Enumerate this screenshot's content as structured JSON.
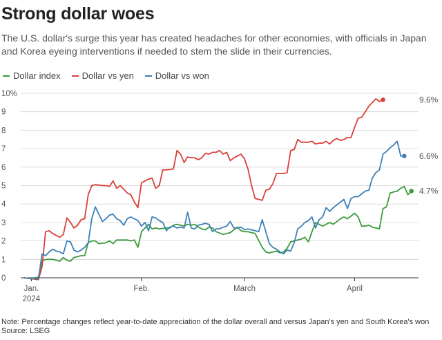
{
  "title": "Strong dollar woes",
  "subtitle": "The U.S. dollar's surge this year has created headaches for other economies, with officials in Japan and Korea eyeing interventions if needed to stem the slide in their currencies.",
  "note": "Note: Percentage changes reflect year-to-date appreciation of the dollar overall and versus Japan's yen and South Korea's won",
  "source": "Source: LSEG",
  "chart_data": {
    "type": "line",
    "title": "Strong dollar woes",
    "xlabel": "",
    "ylabel": "",
    "ylim": [
      0,
      10
    ],
    "yticks": [
      0,
      1,
      2,
      3,
      4,
      5,
      6,
      7,
      8,
      9,
      10
    ],
    "ytick_labels": [
      "0",
      "1",
      "2",
      "3",
      "4",
      "5",
      "6",
      "7",
      "8",
      "9",
      "10%"
    ],
    "xlim": [
      -1,
      111
    ],
    "xticks": [
      {
        "x": 2,
        "label": "Jan.",
        "sublabel": "2024"
      },
      {
        "x": 33,
        "label": "Feb."
      },
      {
        "x": 62,
        "label": "March"
      },
      {
        "x": 93,
        "label": "April"
      }
    ],
    "series": [
      {
        "name": "Dollar index",
        "color": "#3a9a3a",
        "end_label": "4.7%",
        "points": [
          [
            0,
            0
          ],
          [
            2,
            -0.05
          ],
          [
            4,
            0.05
          ],
          [
            5,
            0.9
          ],
          [
            6,
            1.0
          ],
          [
            8,
            1.0
          ],
          [
            9,
            0.95
          ],
          [
            10,
            0.9
          ],
          [
            11,
            1.1
          ],
          [
            12,
            0.95
          ],
          [
            13,
            0.9
          ],
          [
            14,
            1.1
          ],
          [
            16,
            1.2
          ],
          [
            17,
            1.2
          ],
          [
            18,
            1.9
          ],
          [
            19,
            2.0
          ],
          [
            20,
            2.0
          ],
          [
            21,
            1.85
          ],
          [
            23,
            1.9
          ],
          [
            24,
            2.0
          ],
          [
            25,
            1.85
          ],
          [
            26,
            2.05
          ],
          [
            27,
            2.05
          ],
          [
            29,
            2.05
          ],
          [
            30,
            2.0
          ],
          [
            31,
            2.05
          ],
          [
            32,
            1.65
          ],
          [
            33,
            2.5
          ],
          [
            34,
            2.7
          ],
          [
            35,
            2.9
          ],
          [
            36,
            2.65
          ],
          [
            37,
            2.7
          ],
          [
            38,
            2.65
          ],
          [
            40,
            2.7
          ],
          [
            41,
            2.7
          ],
          [
            42,
            2.85
          ],
          [
            43,
            2.9
          ],
          [
            44,
            2.85
          ],
          [
            45,
            2.8
          ],
          [
            46,
            2.9
          ],
          [
            47,
            2.85
          ],
          [
            48,
            2.9
          ],
          [
            49,
            2.75
          ],
          [
            50,
            2.65
          ],
          [
            51,
            2.6
          ],
          [
            52,
            2.75
          ],
          [
            53,
            2.7
          ],
          [
            54,
            2.5
          ],
          [
            56,
            2.35
          ],
          [
            57,
            2.4
          ],
          [
            58,
            2.45
          ],
          [
            59,
            2.6
          ],
          [
            60,
            2.75
          ],
          [
            61,
            2.55
          ],
          [
            62,
            2.5
          ],
          [
            63,
            2.5
          ],
          [
            64,
            2.45
          ],
          [
            65,
            2.4
          ],
          [
            67,
            1.65
          ],
          [
            68,
            1.4
          ],
          [
            69,
            1.35
          ],
          [
            70,
            1.4
          ],
          [
            71,
            1.45
          ],
          [
            72,
            1.35
          ],
          [
            73,
            1.4
          ],
          [
            74,
            1.6
          ],
          [
            75,
            1.95
          ],
          [
            76,
            2.0
          ],
          [
            77,
            2.05
          ],
          [
            78,
            2.1
          ],
          [
            79,
            2.2
          ],
          [
            80,
            1.95
          ],
          [
            81,
            2.5
          ],
          [
            82,
            3.0
          ],
          [
            83,
            2.9
          ],
          [
            84,
            2.8
          ],
          [
            85,
            2.9
          ],
          [
            86,
            3.0
          ],
          [
            87,
            2.9
          ],
          [
            88,
            3.05
          ],
          [
            89,
            3.2
          ],
          [
            90,
            3.3
          ],
          [
            91,
            3.2
          ],
          [
            92,
            3.35
          ],
          [
            93,
            3.5
          ],
          [
            94,
            3.3
          ],
          [
            95,
            2.8
          ],
          [
            96,
            2.8
          ],
          [
            97,
            2.85
          ],
          [
            98,
            2.75
          ],
          [
            99,
            2.7
          ],
          [
            100,
            2.65
          ],
          [
            101,
            3.75
          ],
          [
            102,
            3.85
          ],
          [
            103,
            4.6
          ],
          [
            104,
            4.65
          ],
          [
            105,
            4.7
          ],
          [
            106,
            4.85
          ],
          [
            107,
            4.95
          ],
          [
            108,
            4.5
          ],
          [
            109,
            4.7
          ]
        ]
      },
      {
        "name": "Dollar vs yen",
        "color": "#d9403a",
        "end_label": "9.6%",
        "points": [
          [
            0,
            0
          ],
          [
            2,
            -0.05
          ],
          [
            4,
            -0.1
          ],
          [
            5,
            0.6
          ],
          [
            6,
            2.5
          ],
          [
            7,
            2.55
          ],
          [
            8,
            2.4
          ],
          [
            9,
            2.3
          ],
          [
            10,
            2.2
          ],
          [
            11,
            2.35
          ],
          [
            12,
            3.25
          ],
          [
            13,
            3.0
          ],
          [
            14,
            2.7
          ],
          [
            15,
            2.85
          ],
          [
            16,
            3.15
          ],
          [
            17,
            3.2
          ],
          [
            18,
            4.5
          ],
          [
            19,
            5.0
          ],
          [
            20,
            5.05
          ],
          [
            22,
            5.0
          ],
          [
            23,
            5.0
          ],
          [
            24,
            4.95
          ],
          [
            25,
            5.25
          ],
          [
            26,
            4.85
          ],
          [
            27,
            5.0
          ],
          [
            28,
            4.8
          ],
          [
            29,
            4.6
          ],
          [
            30,
            4.5
          ],
          [
            31,
            4.1
          ],
          [
            32,
            3.8
          ],
          [
            33,
            5.15
          ],
          [
            34,
            5.25
          ],
          [
            35,
            5.35
          ],
          [
            36,
            5.4
          ],
          [
            37,
            4.85
          ],
          [
            38,
            5.0
          ],
          [
            39,
            5.85
          ],
          [
            40,
            5.85
          ],
          [
            42,
            5.9
          ],
          [
            43,
            6.9
          ],
          [
            44,
            6.7
          ],
          [
            45,
            6.25
          ],
          [
            46,
            6.55
          ],
          [
            47,
            6.5
          ],
          [
            48,
            6.5
          ],
          [
            49,
            6.4
          ],
          [
            50,
            6.5
          ],
          [
            51,
            6.75
          ],
          [
            52,
            6.7
          ],
          [
            53,
            6.8
          ],
          [
            54,
            6.8
          ],
          [
            55,
            6.9
          ],
          [
            56,
            6.7
          ],
          [
            57,
            6.8
          ],
          [
            58,
            6.35
          ],
          [
            59,
            6.5
          ],
          [
            60,
            6.6
          ],
          [
            61,
            6.7
          ],
          [
            62,
            6.45
          ],
          [
            63,
            5.9
          ],
          [
            64,
            5.0
          ],
          [
            65,
            4.3
          ],
          [
            66,
            4.25
          ],
          [
            67,
            4.2
          ],
          [
            68,
            4.75
          ],
          [
            69,
            4.8
          ],
          [
            70,
            5.1
          ],
          [
            71,
            5.65
          ],
          [
            72,
            5.65
          ],
          [
            73,
            5.65
          ],
          [
            74,
            5.7
          ],
          [
            75,
            6.9
          ],
          [
            76,
            6.95
          ],
          [
            77,
            7.5
          ],
          [
            78,
            7.35
          ],
          [
            79,
            7.35
          ],
          [
            80,
            7.35
          ],
          [
            81,
            7.4
          ],
          [
            82,
            7.25
          ],
          [
            83,
            7.3
          ],
          [
            84,
            7.3
          ],
          [
            85,
            7.4
          ],
          [
            86,
            7.25
          ],
          [
            87,
            7.45
          ],
          [
            88,
            7.55
          ],
          [
            89,
            7.45
          ],
          [
            90,
            7.5
          ],
          [
            91,
            7.6
          ],
          [
            92,
            7.6
          ],
          [
            93,
            8.15
          ],
          [
            94,
            8.65
          ],
          [
            95,
            8.7
          ],
          [
            96,
            9.0
          ],
          [
            97,
            9.3
          ],
          [
            98,
            9.5
          ],
          [
            99,
            9.7
          ],
          [
            100,
            9.55
          ],
          [
            101,
            9.65
          ]
        ]
      },
      {
        "name": "Dollar vs won",
        "color": "#3d80b8",
        "end_label": "6.6%",
        "points": [
          [
            0,
            0
          ],
          [
            2,
            -0.05
          ],
          [
            4,
            -0.05
          ],
          [
            5,
            1.3
          ],
          [
            6,
            1.2
          ],
          [
            7,
            1.4
          ],
          [
            8,
            1.55
          ],
          [
            9,
            1.45
          ],
          [
            10,
            1.4
          ],
          [
            11,
            1.3
          ],
          [
            12,
            2.0
          ],
          [
            13,
            1.95
          ],
          [
            14,
            1.5
          ],
          [
            15,
            1.4
          ],
          [
            16,
            1.5
          ],
          [
            17,
            1.65
          ],
          [
            18,
            1.9
          ],
          [
            19,
            3.2
          ],
          [
            20,
            3.85
          ],
          [
            21,
            3.45
          ],
          [
            22,
            3.05
          ],
          [
            23,
            3.2
          ],
          [
            24,
            3.4
          ],
          [
            25,
            3.45
          ],
          [
            26,
            3.2
          ],
          [
            27,
            3.1
          ],
          [
            28,
            2.85
          ],
          [
            29,
            3.2
          ],
          [
            30,
            3.3
          ],
          [
            31,
            3.2
          ],
          [
            32,
            3.1
          ],
          [
            33,
            2.8
          ],
          [
            34,
            3.0
          ],
          [
            35,
            2.55
          ],
          [
            36,
            3.3
          ],
          [
            37,
            3.25
          ],
          [
            38,
            3.1
          ],
          [
            39,
            3.0
          ],
          [
            40,
            2.55
          ],
          [
            41,
            2.75
          ],
          [
            42,
            2.8
          ],
          [
            43,
            2.7
          ],
          [
            44,
            2.75
          ],
          [
            45,
            2.7
          ],
          [
            46,
            3.55
          ],
          [
            47,
            2.7
          ],
          [
            48,
            2.65
          ],
          [
            49,
            2.85
          ],
          [
            50,
            2.9
          ],
          [
            51,
            2.95
          ],
          [
            52,
            2.9
          ],
          [
            53,
            2.5
          ],
          [
            54,
            2.65
          ],
          [
            55,
            2.65
          ],
          [
            56,
            2.75
          ],
          [
            57,
            2.8
          ],
          [
            58,
            3.05
          ],
          [
            59,
            2.7
          ],
          [
            60,
            2.7
          ],
          [
            61,
            2.75
          ],
          [
            62,
            2.6
          ],
          [
            63,
            2.65
          ],
          [
            64,
            2.6
          ],
          [
            65,
            2.55
          ],
          [
            66,
            2.5
          ],
          [
            67,
            3.15
          ],
          [
            68,
            2.5
          ],
          [
            69,
            1.85
          ],
          [
            70,
            1.65
          ],
          [
            71,
            1.55
          ],
          [
            72,
            1.4
          ],
          [
            73,
            1.3
          ],
          [
            74,
            1.5
          ],
          [
            75,
            1.45
          ],
          [
            76,
            1.9
          ],
          [
            77,
            2.65
          ],
          [
            78,
            2.8
          ],
          [
            79,
            3.0
          ],
          [
            80,
            3.1
          ],
          [
            81,
            3.3
          ],
          [
            82,
            2.7
          ],
          [
            83,
            3.15
          ],
          [
            84,
            3.3
          ],
          [
            85,
            3.8
          ],
          [
            86,
            3.6
          ],
          [
            87,
            3.8
          ],
          [
            88,
            3.95
          ],
          [
            89,
            4.1
          ],
          [
            90,
            4.25
          ],
          [
            91,
            3.75
          ],
          [
            92,
            4.3
          ],
          [
            93,
            4.4
          ],
          [
            94,
            4.4
          ],
          [
            95,
            4.55
          ],
          [
            96,
            4.7
          ],
          [
            97,
            4.75
          ],
          [
            98,
            5.4
          ],
          [
            99,
            5.7
          ],
          [
            100,
            5.85
          ],
          [
            101,
            6.7
          ],
          [
            102,
            6.85
          ],
          [
            103,
            7.05
          ],
          [
            104,
            7.2
          ],
          [
            105,
            7.4
          ],
          [
            106,
            6.6
          ],
          [
            107,
            6.6
          ]
        ]
      }
    ]
  }
}
